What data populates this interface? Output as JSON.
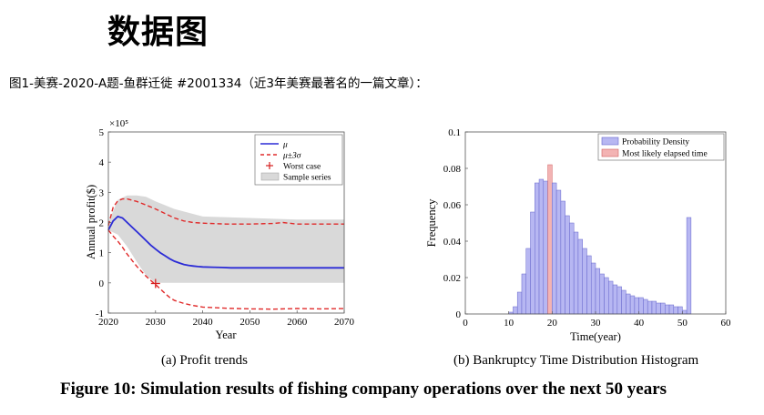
{
  "page": {
    "heading": "数据图",
    "subtitle": "图1-美赛-2020-A题-鱼群迁徙 #2001334（近3年美赛最著名的一篇文章）：",
    "figure_caption": "Figure 10: Simulation results of fishing company operations over the next 50 years"
  },
  "chart_data": [
    {
      "type": "line",
      "caption": "(a) Profit trends",
      "xlabel": "Year",
      "ylabel": "Annual profit($)",
      "y_exponent_label": "×10⁵",
      "xlim": [
        2020,
        2070
      ],
      "ylim": [
        -1,
        5
      ],
      "x_ticks": [
        2020,
        2030,
        2040,
        2050,
        2060,
        2070
      ],
      "y_ticks": [
        -1,
        0,
        1,
        2,
        3,
        4,
        5
      ],
      "legend_position": "top-right",
      "series": [
        {
          "name": "μ",
          "style": "solid",
          "color": "#2b2bd6",
          "x": [
            2020,
            2021,
            2022,
            2023,
            2024,
            2025,
            2026,
            2027,
            2028,
            2029,
            2030,
            2031,
            2032,
            2033,
            2034,
            2035,
            2036,
            2037,
            2038,
            2039,
            2040,
            2042,
            2044,
            2046,
            2050,
            2055,
            2060,
            2065,
            2070
          ],
          "y": [
            1.75,
            2.05,
            2.2,
            2.15,
            2.0,
            1.85,
            1.7,
            1.55,
            1.4,
            1.25,
            1.12,
            1.0,
            0.9,
            0.8,
            0.72,
            0.66,
            0.61,
            0.58,
            0.56,
            0.54,
            0.53,
            0.52,
            0.51,
            0.5,
            0.5,
            0.5,
            0.5,
            0.5,
            0.5
          ]
        },
        {
          "name": "μ±3σ",
          "style": "dashed",
          "color": "#e02a2a",
          "x": [
            2020,
            2021,
            2022,
            2023,
            2024,
            2026,
            2028,
            2030,
            2032,
            2034,
            2036,
            2038,
            2040,
            2045,
            2050,
            2055,
            2057,
            2060,
            2065,
            2070
          ],
          "y": [
            1.9,
            2.5,
            2.72,
            2.78,
            2.78,
            2.7,
            2.58,
            2.45,
            2.3,
            2.15,
            2.05,
            2.0,
            1.98,
            1.95,
            1.95,
            1.97,
            2.0,
            1.95,
            1.95,
            1.95
          ]
        },
        {
          "name": "μ-3σ",
          "style": "dashed",
          "color": "#e02a2a",
          "x": [
            2020,
            2021,
            2022,
            2023,
            2024,
            2025,
            2026,
            2027,
            2028,
            2029,
            2030,
            2031,
            2032,
            2033,
            2034,
            2036,
            2038,
            2040,
            2045,
            2050,
            2055,
            2060,
            2065,
            2070
          ],
          "y": [
            1.75,
            1.55,
            1.38,
            1.18,
            0.95,
            0.75,
            0.55,
            0.38,
            0.22,
            0.08,
            -0.05,
            -0.2,
            -0.35,
            -0.48,
            -0.58,
            -0.68,
            -0.75,
            -0.8,
            -0.84,
            -0.86,
            -0.87,
            -0.85,
            -0.86,
            -0.85
          ]
        }
      ],
      "band": {
        "name": "Sample series",
        "color": "#d9d9d9",
        "x": [
          2020,
          2022,
          2024,
          2026,
          2028,
          2030,
          2034,
          2040,
          2050,
          2060,
          2070
        ],
        "upper": [
          2.0,
          2.75,
          2.9,
          2.9,
          2.85,
          2.7,
          2.45,
          2.2,
          2.15,
          2.1,
          2.1
        ],
        "lower": [
          1.75,
          1.6,
          1.2,
          0.7,
          0.25,
          0.0,
          0.0,
          0.0,
          0.0,
          0.0,
          0.0
        ]
      },
      "worst_case": {
        "name": "Worst case",
        "x": 2030,
        "y": -0.02,
        "color": "#d62020"
      }
    },
    {
      "type": "bar",
      "caption": "(b) Bankruptcy Time Distribution Histogram",
      "xlabel": "Time(year)",
      "ylabel": "Frequency",
      "xlim": [
        0,
        60
      ],
      "ylim": [
        0,
        0.1
      ],
      "x_ticks": [
        0,
        10,
        20,
        30,
        40,
        50,
        60
      ],
      "y_ticks": [
        0,
        0.02,
        0.04,
        0.06,
        0.08,
        0.1
      ],
      "legend_position": "top-right",
      "bin_width": 1,
      "bins_start": [
        10,
        11,
        12,
        13,
        14,
        15,
        16,
        17,
        18,
        19,
        20,
        21,
        22,
        23,
        24,
        25,
        26,
        27,
        28,
        29,
        30,
        31,
        32,
        33,
        34,
        35,
        36,
        37,
        38,
        39,
        40,
        41,
        42,
        43,
        44,
        45,
        46,
        47,
        48,
        49,
        50,
        51
      ],
      "frequencies": [
        0.001,
        0.004,
        0.012,
        0.022,
        0.036,
        0.056,
        0.072,
        0.074,
        0.073,
        0.082,
        0.072,
        0.068,
        0.062,
        0.054,
        0.05,
        0.045,
        0.041,
        0.036,
        0.032,
        0.028,
        0.025,
        0.022,
        0.02,
        0.018,
        0.016,
        0.015,
        0.013,
        0.011,
        0.01,
        0.009,
        0.009,
        0.008,
        0.007,
        0.007,
        0.006,
        0.006,
        0.005,
        0.005,
        0.004,
        0.004,
        0.002,
        0.053
      ],
      "highlight_bin_start": 19,
      "series": [
        {
          "name": "Probability Density",
          "color": "#b7b7f2",
          "edge": "#6666cc"
        },
        {
          "name": "Most likely elapsed time",
          "color": "#f3b3b3",
          "edge": "#d06060"
        }
      ]
    }
  ]
}
